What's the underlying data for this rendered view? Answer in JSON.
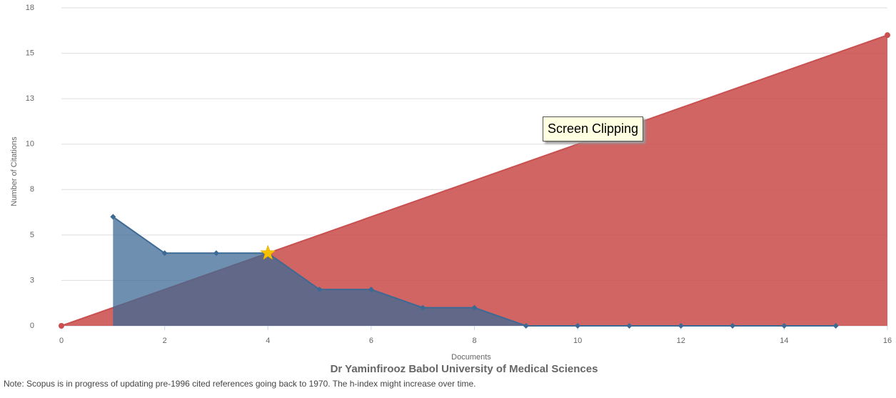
{
  "chart_data": {
    "type": "area",
    "y_label": "Number of Citations",
    "x_label": "Documents",
    "author": "Dr Yaminfirooz   Babol University of Medical Sciences",
    "note": "Note: Scopus is in progress of updating pre-1996 cited references going back to 1970. The h-index might increase over time.",
    "annotation": "Screen Clipping",
    "xlim": [
      0,
      16
    ],
    "xticks": [
      0,
      2,
      4,
      6,
      8,
      10,
      12,
      14,
      16
    ],
    "ylim": [
      0,
      17.5
    ],
    "yticks": [
      0,
      {
        "value": 2.5,
        "label": "3"
      },
      5,
      {
        "value": 7.5,
        "label": "8"
      },
      10,
      {
        "value": 12.5,
        "label": "13"
      },
      15,
      {
        "value": 17.5,
        "label": "18"
      }
    ],
    "grid": true,
    "series": [
      {
        "color": "#c9504f",
        "x": [
          0,
          16
        ],
        "values": [
          0,
          16
        ]
      },
      {
        "color": "#3d6a94",
        "x": [
          1,
          2,
          3,
          4,
          5,
          6,
          7,
          8,
          9,
          10,
          11,
          12,
          13,
          14,
          15
        ],
        "values": [
          6,
          4,
          4,
          4,
          2,
          2,
          1,
          1,
          0,
          0,
          0,
          0,
          0,
          0,
          0
        ]
      }
    ],
    "h_index": {
      "x": 4,
      "value": 4,
      "color": "#f5c000"
    }
  }
}
